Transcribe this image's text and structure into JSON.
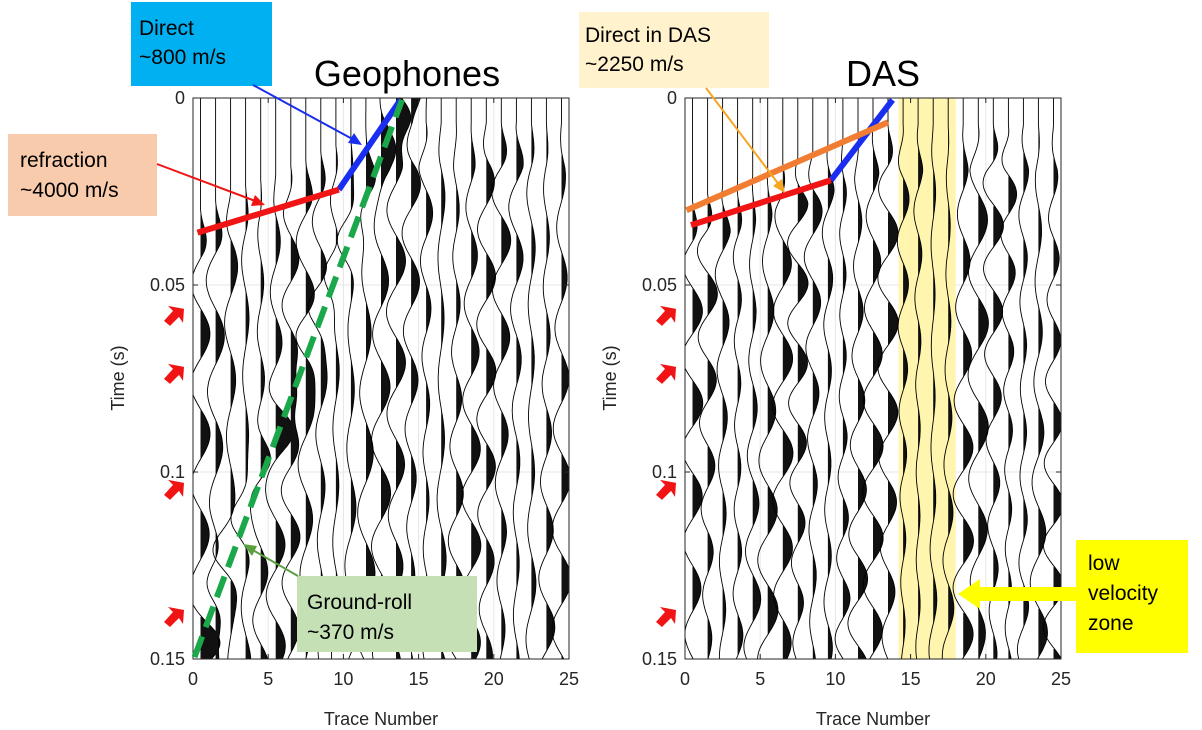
{
  "chart_data": [
    {
      "type": "seismic_wiggle",
      "title": "Geophones",
      "xlabel": "Trace Number",
      "ylabel": "Time (s)",
      "xlim": [
        0,
        25
      ],
      "ylim": [
        0.15,
        0
      ],
      "xticks": [
        "0",
        "5",
        "10",
        "15",
        "20",
        "25"
      ],
      "yticks": [
        "0",
        "0.05",
        "0.1",
        "0.15"
      ],
      "grid": true,
      "traces": 25,
      "picks": [
        {
          "name": "direct",
          "color": "#1a2ef0",
          "style": "solid",
          "x": [
            9.7,
            13.8
          ],
          "y": [
            0.0245,
            0.0005
          ]
        },
        {
          "name": "refraction",
          "color": "#f01414",
          "style": "solid",
          "x": [
            0.3,
            9.7
          ],
          "y": [
            0.036,
            0.0245
          ]
        },
        {
          "name": "ground-roll",
          "color": "#1aa84a",
          "style": "dashed",
          "x": [
            0.1,
            13.9
          ],
          "y": [
            0.1495,
            0.0005
          ]
        }
      ],
      "annotations": [
        {
          "line1": "Direct",
          "line2": "~800 m/s",
          "box_color": "#00b0f0"
        },
        {
          "line1": "refraction",
          "line2": "~4000 m/s",
          "box_color": "#f8cbad"
        },
        {
          "line1": "Ground-roll",
          "line2": "~370 m/s",
          "box_color": "#c5e0b4"
        }
      ]
    },
    {
      "type": "seismic_wiggle",
      "title": "DAS",
      "xlabel": "Trace Number",
      "ylabel": "Time (s)",
      "xlim": [
        0,
        25
      ],
      "ylim": [
        0.15,
        0
      ],
      "xticks": [
        "0",
        "5",
        "10",
        "15",
        "20",
        "25"
      ],
      "yticks": [
        "0",
        "0.05",
        "0.1",
        "0.15"
      ],
      "grid": true,
      "traces": 25,
      "highlight_zone": {
        "x": [
          14.2,
          18.0
        ],
        "color": "#fff3a0"
      },
      "picks": [
        {
          "name": "direct",
          "color": "#1a2ef0",
          "style": "solid",
          "x": [
            9.7,
            13.8
          ],
          "y": [
            0.022,
            0.0005
          ]
        },
        {
          "name": "refraction",
          "color": "#f01414",
          "style": "solid",
          "x": [
            0.4,
            9.7
          ],
          "y": [
            0.034,
            0.022
          ]
        },
        {
          "name": "direct-in-das",
          "color": "#f07d32",
          "style": "solid",
          "x": [
            0.1,
            13.5
          ],
          "y": [
            0.03,
            0.0065
          ]
        }
      ],
      "annotations": [
        {
          "line1": "Direct in DAS",
          "line2": "~2250 m/s",
          "box_color": "#fff2cc"
        },
        {
          "line1": "low",
          "line2": "velocity",
          "line3": "zone",
          "box_color": "#ffff00"
        }
      ]
    }
  ],
  "side_arrows": {
    "color": "#f01414",
    "times": [
      0.058,
      0.0735,
      0.1045,
      0.1385
    ]
  }
}
